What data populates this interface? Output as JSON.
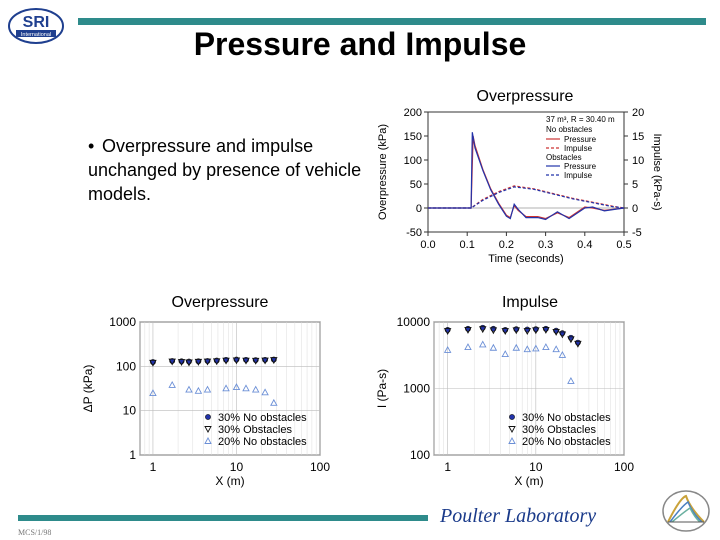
{
  "slide": {
    "title": "Pressure and Impulse",
    "bullet": "Overpressure and impulse unchanged by presence of vehicle models.",
    "label_top": "Overpressure",
    "label_left": "Overpressure",
    "label_right": "Impulse",
    "lab_name": "Poulter Laboratory",
    "footer_code": "MCS/1/98",
    "logo_text": "SRI",
    "logo_subtext": "International"
  },
  "colors": {
    "accent_bar": "#2e8b8b",
    "lab_name": "#1a3a8a",
    "pressure_red": "#cc3333",
    "obstacle_blue": "#2233aa",
    "light_blue": "#6b8fd6"
  },
  "chart_data": [
    {
      "type": "line",
      "title": "",
      "xlabel": "Time (seconds)",
      "ylabel": "Overpressure (kPa)",
      "y2label": "Impulse  (kPa-s)",
      "xlim": [
        0,
        0.5
      ],
      "ylim": [
        -50,
        200
      ],
      "y2lim": [
        -5,
        20
      ],
      "xticks": [
        "0.0",
        "0.1",
        "0.2",
        "0.3",
        "0.4",
        "0.5"
      ],
      "yticks": [
        "200",
        "150",
        "100",
        "50",
        "0",
        "-50"
      ],
      "y2ticks": [
        "20",
        "15",
        "10",
        "5",
        "0",
        "-5"
      ],
      "annotation": "37 m³, R = 30.40 m",
      "legend": {
        "group1": "No obstacles",
        "group2": "Obstacles",
        "items": [
          "Pressure",
          "Impulse",
          "Pressure",
          "Impulse"
        ]
      },
      "series": [
        {
          "name": "Pressure",
          "group": "No obstacles",
          "axis": "left",
          "style": "solid-red",
          "x": [
            0,
            0.1,
            0.11,
            0.115,
            0.12,
            0.14,
            0.16,
            0.18,
            0.2,
            0.21,
            0.22,
            0.23,
            0.25,
            0.28,
            0.3,
            0.33,
            0.36,
            0.4,
            0.42,
            0.45,
            0.5
          ],
          "y": [
            0,
            0,
            0,
            150,
            130,
            80,
            40,
            10,
            -15,
            -20,
            5,
            -5,
            -18,
            -18,
            -22,
            -10,
            -20,
            2,
            0,
            -5,
            0
          ]
        },
        {
          "name": "Impulse",
          "group": "No obstacles",
          "axis": "right",
          "style": "dashed-red",
          "x": [
            0,
            0.11,
            0.14,
            0.18,
            0.22,
            0.27,
            0.32,
            0.37,
            0.42,
            0.47,
            0.5
          ],
          "y": [
            0,
            0,
            1.8,
            3.4,
            4.6,
            4.0,
            3.0,
            2.0,
            1.2,
            0.4,
            0
          ]
        },
        {
          "name": "Pressure",
          "group": "Obstacles",
          "axis": "left",
          "style": "solid-blue",
          "x": [
            0,
            0.1,
            0.11,
            0.113,
            0.12,
            0.14,
            0.16,
            0.18,
            0.2,
            0.21,
            0.22,
            0.23,
            0.25,
            0.28,
            0.3,
            0.33,
            0.36,
            0.4,
            0.42,
            0.45,
            0.5
          ],
          "y": [
            0,
            0,
            0,
            158,
            125,
            78,
            38,
            8,
            -17,
            -22,
            8,
            -3,
            -20,
            -20,
            -24,
            -8,
            -22,
            0,
            2,
            -6,
            0
          ]
        },
        {
          "name": "Impulse",
          "group": "Obstacles",
          "axis": "right",
          "style": "dashed-blue",
          "x": [
            0,
            0.11,
            0.14,
            0.18,
            0.22,
            0.27,
            0.32,
            0.37,
            0.42,
            0.47,
            0.5
          ],
          "y": [
            0,
            0,
            1.6,
            3.2,
            4.4,
            3.9,
            2.9,
            1.9,
            1.1,
            0.3,
            0
          ]
        }
      ]
    },
    {
      "type": "scatter",
      "xlabel": "X (m)",
      "ylabel": "ΔP (kPa)",
      "xscale": "log",
      "yscale": "log",
      "xlim": [
        0.7,
        100
      ],
      "ylim": [
        1,
        1000
      ],
      "xticks": [
        "1",
        "10",
        "100"
      ],
      "yticks": [
        "1000",
        "100",
        "10",
        "1"
      ],
      "legend_position": "bottom-right",
      "series": [
        {
          "name": "30% No obstacles",
          "marker": "circle",
          "x": [
            1,
            1.7,
            2.2,
            2.7,
            3.5,
            4.5,
            5.8,
            7.5,
            10,
            13,
            17,
            22,
            28
          ],
          "y": [
            125,
            132,
            130,
            128,
            130,
            132,
            135,
            140,
            142,
            140,
            138,
            140,
            142
          ]
        },
        {
          "name": "30% Obstacles",
          "marker": "triangle-down",
          "x": [
            1,
            1.7,
            2.2,
            2.7,
            3.5,
            4.5,
            5.8,
            7.5,
            10,
            13,
            17,
            22,
            28
          ],
          "y": [
            120,
            128,
            125,
            122,
            126,
            128,
            130,
            134,
            136,
            134,
            133,
            135,
            138
          ]
        },
        {
          "name": "20% No obstacles",
          "marker": "triangle-up",
          "x": [
            1,
            1.7,
            2.7,
            3.5,
            4.5,
            7.5,
            10,
            13,
            17,
            22,
            28
          ],
          "y": [
            25,
            38,
            30,
            28,
            30,
            32,
            34,
            32,
            30,
            26,
            15
          ]
        }
      ]
    },
    {
      "type": "scatter",
      "xlabel": "X (m)",
      "ylabel": "I (Pa-s)",
      "xscale": "log",
      "yscale": "log",
      "xlim": [
        0.7,
        100
      ],
      "ylim": [
        100,
        10000
      ],
      "xticks": [
        "1",
        "10",
        "100"
      ],
      "yticks": [
        "10000",
        "1000",
        "100"
      ],
      "legend_position": "bottom-right",
      "series": [
        {
          "name": "30% No obstacles",
          "marker": "circle",
          "x": [
            1,
            1.7,
            2.5,
            3.3,
            4.5,
            6,
            8,
            10,
            13,
            17,
            20,
            25,
            30
          ],
          "y": [
            7600,
            7900,
            8200,
            7900,
            7600,
            7800,
            7700,
            7800,
            7900,
            7400,
            6800,
            5800,
            4900
          ]
        },
        {
          "name": "30% Obstacles",
          "marker": "triangle-down",
          "x": [
            1,
            1.7,
            2.5,
            3.3,
            4.5,
            6,
            8,
            10,
            13,
            17,
            20,
            25,
            30
          ],
          "y": [
            7300,
            7600,
            7800,
            7500,
            7300,
            7500,
            7300,
            7500,
            7600,
            7100,
            6500,
            5500,
            4700
          ]
        },
        {
          "name": "20% No obstacles",
          "marker": "triangle-up",
          "x": [
            1,
            1.7,
            2.5,
            3.3,
            4.5,
            6,
            8,
            10,
            13,
            17,
            20,
            25
          ],
          "y": [
            3800,
            4200,
            4600,
            4100,
            3300,
            4100,
            3900,
            4000,
            4200,
            3900,
            3200,
            1300
          ]
        }
      ]
    }
  ]
}
